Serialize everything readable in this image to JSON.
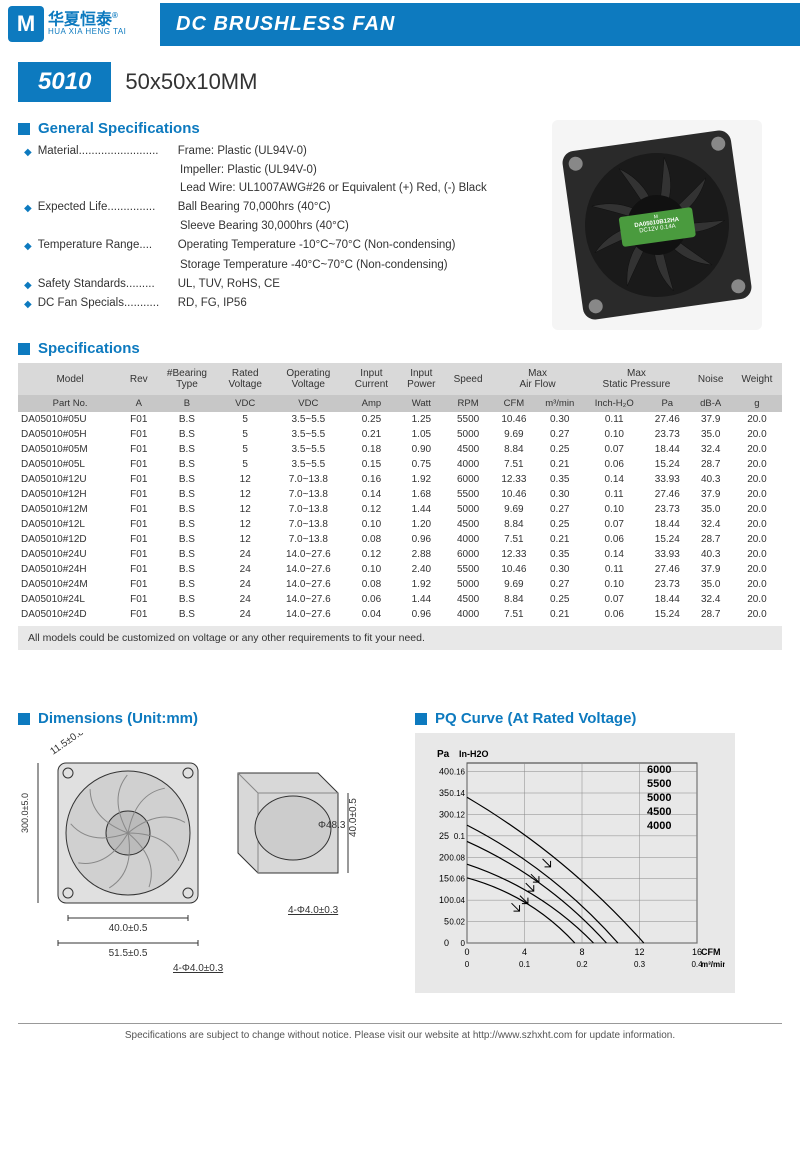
{
  "logo": {
    "mark": "M",
    "cn": "华夏恒泰",
    "en": "HUA XIA HENG TAI",
    "reg": "®"
  },
  "header": {
    "title": "DC BRUSHLESS FAN"
  },
  "model": {
    "badge": "5010",
    "dim": "50x50x10MM"
  },
  "product_label": {
    "model": "DA05010B12HA",
    "volt": "DC12V  0.14A",
    "marks": "CE ⓔ"
  },
  "sections": {
    "general": "General Specifications",
    "specs": "Specifications",
    "dims": "Dimensions (Unit:mm)",
    "pq": "PQ Curve (At Rated Voltage)"
  },
  "general": [
    {
      "label": "Material.........................",
      "lines": [
        "Frame: Plastic (UL94V-0)",
        "Impeller: Plastic (UL94V-0)",
        "Lead Wire: UL1007AWG#26 or Equivalent (+) Red, (-) Black"
      ]
    },
    {
      "label": "Expected Life...............",
      "lines": [
        "Ball Bearing 70,000hrs (40°C)",
        "Sleeve Bearing 30,000hrs (40°C)"
      ]
    },
    {
      "label": "Temperature Range....",
      "lines": [
        "Operating Temperature -10°C~70°C (Non-condensing)",
        "Storage Temperature -40°C~70°C (Non-condensing)"
      ]
    },
    {
      "label": "Safety Standards.........",
      "lines": [
        "UL, TUV, RoHS, CE"
      ]
    },
    {
      "label": "DC Fan Specials...........",
      "lines": [
        "RD, FG, IP56"
      ]
    }
  ],
  "table": {
    "head1": [
      "Model",
      "Rev",
      "#Bearing Type",
      "Rated Voltage",
      "Operating Voltage",
      "Input Current",
      "Input Power",
      "Speed",
      "Max Air Flow",
      "",
      "Max Static Pressure",
      "",
      "Noise",
      "Weight"
    ],
    "head2": [
      "Part No.",
      "A",
      "B",
      "VDC",
      "VDC",
      "Amp",
      "Watt",
      "RPM",
      "CFM",
      "m³/min",
      "Inch-H₂O",
      "Pa",
      "dB-A",
      "g"
    ],
    "colspans": [
      1,
      1,
      1,
      1,
      1,
      1,
      1,
      1,
      2,
      0,
      2,
      0,
      1,
      1
    ],
    "rows": [
      [
        "DA05010#05U",
        "F01",
        "B.S",
        "5",
        "3.5~5.5",
        "0.25",
        "1.25",
        "5500",
        "10.46",
        "0.30",
        "0.11",
        "27.46",
        "37.9",
        "20.0"
      ],
      [
        "DA05010#05H",
        "F01",
        "B.S",
        "5",
        "3.5~5.5",
        "0.21",
        "1.05",
        "5000",
        "9.69",
        "0.27",
        "0.10",
        "23.73",
        "35.0",
        "20.0"
      ],
      [
        "DA05010#05M",
        "F01",
        "B.S",
        "5",
        "3.5~5.5",
        "0.18",
        "0.90",
        "4500",
        "8.84",
        "0.25",
        "0.07",
        "18.44",
        "32.4",
        "20.0"
      ],
      [
        "DA05010#05L",
        "F01",
        "B.S",
        "5",
        "3.5~5.5",
        "0.15",
        "0.75",
        "4000",
        "7.51",
        "0.21",
        "0.06",
        "15.24",
        "28.7",
        "20.0"
      ],
      [
        "DA05010#12U",
        "F01",
        "B.S",
        "12",
        "7.0~13.8",
        "0.16",
        "1.92",
        "6000",
        "12.33",
        "0.35",
        "0.14",
        "33.93",
        "40.3",
        "20.0"
      ],
      [
        "DA05010#12H",
        "F01",
        "B.S",
        "12",
        "7.0~13.8",
        "0.14",
        "1.68",
        "5500",
        "10.46",
        "0.30",
        "0.11",
        "27.46",
        "37.9",
        "20.0"
      ],
      [
        "DA05010#12M",
        "F01",
        "B.S",
        "12",
        "7.0~13.8",
        "0.12",
        "1.44",
        "5000",
        "9.69",
        "0.27",
        "0.10",
        "23.73",
        "35.0",
        "20.0"
      ],
      [
        "DA05010#12L",
        "F01",
        "B.S",
        "12",
        "7.0~13.8",
        "0.10",
        "1.20",
        "4500",
        "8.84",
        "0.25",
        "0.07",
        "18.44",
        "32.4",
        "20.0"
      ],
      [
        "DA05010#12D",
        "F01",
        "B.S",
        "12",
        "7.0~13.8",
        "0.08",
        "0.96",
        "4000",
        "7.51",
        "0.21",
        "0.06",
        "15.24",
        "28.7",
        "20.0"
      ],
      [
        "DA05010#24U",
        "F01",
        "B.S",
        "24",
        "14.0~27.6",
        "0.12",
        "2.88",
        "6000",
        "12.33",
        "0.35",
        "0.14",
        "33.93",
        "40.3",
        "20.0"
      ],
      [
        "DA05010#24H",
        "F01",
        "B.S",
        "24",
        "14.0~27.6",
        "0.10",
        "2.40",
        "5500",
        "10.46",
        "0.30",
        "0.11",
        "27.46",
        "37.9",
        "20.0"
      ],
      [
        "DA05010#24M",
        "F01",
        "B.S",
        "24",
        "14.0~27.6",
        "0.08",
        "1.92",
        "5000",
        "9.69",
        "0.27",
        "0.10",
        "23.73",
        "35.0",
        "20.0"
      ],
      [
        "DA05010#24L",
        "F01",
        "B.S",
        "24",
        "14.0~27.6",
        "0.06",
        "1.44",
        "4500",
        "8.84",
        "0.25",
        "0.07",
        "18.44",
        "32.4",
        "20.0"
      ],
      [
        "DA05010#24D",
        "F01",
        "B.S",
        "24",
        "14.0~27.6",
        "0.04",
        "0.96",
        "4000",
        "7.51",
        "0.21",
        "0.06",
        "15.24",
        "28.7",
        "20.0"
      ]
    ],
    "note": "All models could be customized on voltage or any other requirements to fit your need."
  },
  "dimensions": {
    "labels": [
      "11.5±0.8",
      "300.0±5.0",
      "40.0±0.5",
      "51.5±0.5",
      "4-Φ4.0±0.3",
      "Φ48.3",
      "40.0±0.5",
      "4-Φ4.0±0.3"
    ],
    "stroke": "#333",
    "fill": "#d0d0d0"
  },
  "pq": {
    "type": "line",
    "bg": "#e8e8e8",
    "grid": "#888",
    "stroke": "#000",
    "y_pa": {
      "label": "Pa",
      "ticks": [
        0,
        5,
        10,
        15,
        20,
        25,
        30,
        35,
        40
      ],
      "lim": [
        0,
        42
      ]
    },
    "y_in": {
      "label": "In-H2O",
      "ticks": [
        0,
        0.02,
        0.04,
        0.06,
        0.08,
        0.1,
        0.12,
        0.14,
        0.16
      ]
    },
    "x_cfm": {
      "label": "CFM",
      "ticks": [
        0,
        4,
        8,
        12,
        16
      ],
      "lim": [
        0,
        16
      ]
    },
    "x_m3": {
      "label": "m³/min",
      "ticks": [
        0,
        0.1,
        0.2,
        0.3,
        0.4
      ]
    },
    "series": [
      {
        "name": "6000",
        "pts": [
          [
            0,
            34
          ],
          [
            12.3,
            0
          ]
        ]
      },
      {
        "name": "5500",
        "pts": [
          [
            0,
            27.5
          ],
          [
            10.5,
            0
          ]
        ]
      },
      {
        "name": "5000",
        "pts": [
          [
            0,
            23.7
          ],
          [
            9.7,
            0
          ]
        ]
      },
      {
        "name": "4500",
        "pts": [
          [
            0,
            18.4
          ],
          [
            8.8,
            0
          ]
        ]
      },
      {
        "name": "4000",
        "pts": [
          [
            0,
            15.2
          ],
          [
            7.5,
            0
          ]
        ]
      }
    ],
    "line_color": "#000",
    "line_width": 1.2,
    "label_fontsize": 10
  },
  "footer": "Specifications are subject to change without notice. Please visit our website at http://www.szhxht.com for update information."
}
